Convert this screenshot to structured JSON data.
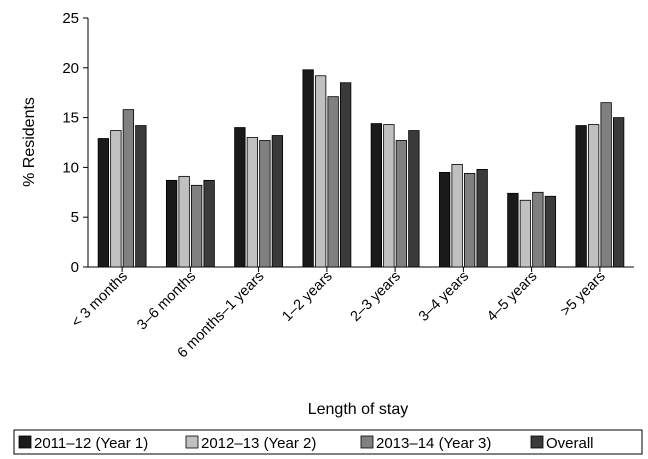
{
  "chart_data": {
    "type": "bar",
    "title": "",
    "xlabel": "Length of stay",
    "ylabel": "% Residents",
    "ylim": [
      0,
      25
    ],
    "yticks": [
      0,
      5,
      10,
      15,
      20,
      25
    ],
    "grid": false,
    "legend_position": "bottom",
    "categories": [
      "< 3 months",
      "3–6 months",
      "6 months–1 years",
      "1–2 years",
      "2–3 years",
      "3–4 years",
      "4–5 years",
      ">5 years"
    ],
    "series": [
      {
        "name": "2011–12 (Year 1)",
        "color": "#1a1a1a",
        "values": [
          12.9,
          8.7,
          14.0,
          19.8,
          14.4,
          9.5,
          7.4,
          14.2
        ]
      },
      {
        "name": "2012–13 (Year 2)",
        "color": "#c0c0c0",
        "values": [
          13.7,
          9.1,
          13.0,
          19.2,
          14.3,
          10.3,
          6.7,
          14.3
        ]
      },
      {
        "name": "2013–14 (Year 3)",
        "color": "#808080",
        "values": [
          15.8,
          8.2,
          12.7,
          17.1,
          12.7,
          9.4,
          7.5,
          16.5
        ]
      },
      {
        "name": "Overall",
        "color": "#3a3a3a",
        "values": [
          14.2,
          8.7,
          13.2,
          18.5,
          13.7,
          9.8,
          7.1,
          15.0
        ]
      }
    ]
  }
}
